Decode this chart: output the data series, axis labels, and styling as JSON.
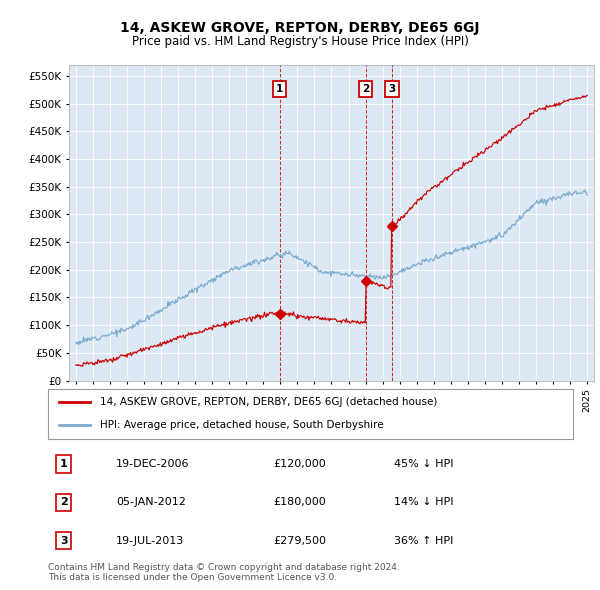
{
  "title": "14, ASKEW GROVE, REPTON, DERBY, DE65 6GJ",
  "subtitle": "Price paid vs. HM Land Registry's House Price Index (HPI)",
  "red_line_color": "#cc0000",
  "blue_line_color": "#7aaacc",
  "background_color": "#dce9f5",
  "ylim": [
    0,
    570000
  ],
  "yticks": [
    0,
    50000,
    100000,
    150000,
    200000,
    250000,
    300000,
    350000,
    400000,
    450000,
    500000,
    550000
  ],
  "xlim_start": 1994.6,
  "xlim_end": 2025.4,
  "sales": [
    {
      "label": "1",
      "date": "19-DEC-2006",
      "price": 120000,
      "year": 2006.97,
      "hpi_relation": "45% ↓ HPI"
    },
    {
      "label": "2",
      "date": "05-JAN-2012",
      "price": 180000,
      "year": 2012.02,
      "hpi_relation": "14% ↓ HPI"
    },
    {
      "label": "3",
      "date": "19-JUL-2013",
      "price": 279500,
      "year": 2013.55,
      "hpi_relation": "36% ↑ HPI"
    }
  ],
  "sale_dot_prices": [
    120000,
    180000,
    279500
  ],
  "legend_red": "14, ASKEW GROVE, REPTON, DERBY, DE65 6GJ (detached house)",
  "legend_blue": "HPI: Average price, detached house, South Derbyshire",
  "footnote": "Contains HM Land Registry data © Crown copyright and database right 2024.\nThis data is licensed under the Open Government Licence v3.0.",
  "xtick_years": [
    1995,
    1996,
    1997,
    1998,
    1999,
    2000,
    2001,
    2002,
    2003,
    2004,
    2005,
    2006,
    2007,
    2008,
    2009,
    2010,
    2011,
    2012,
    2013,
    2014,
    2015,
    2016,
    2017,
    2018,
    2019,
    2020,
    2021,
    2022,
    2023,
    2024,
    2025
  ]
}
